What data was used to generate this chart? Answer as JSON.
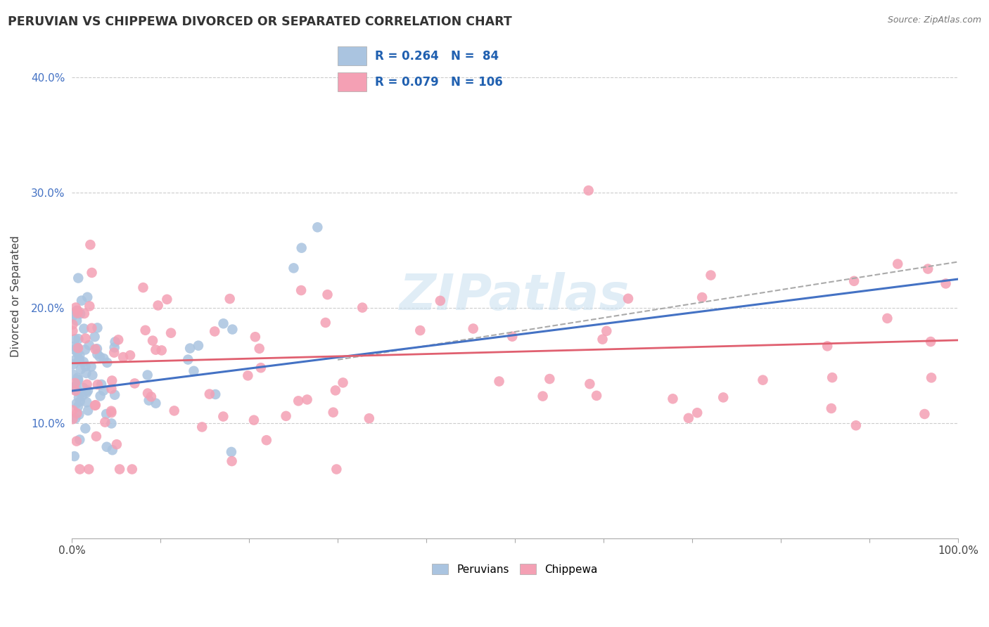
{
  "title": "PERUVIAN VS CHIPPEWA DIVORCED OR SEPARATED CORRELATION CHART",
  "source": "Source: ZipAtlas.com",
  "ylabel": "Divorced or Separated",
  "yticks": [
    0.1,
    0.2,
    0.3,
    0.4
  ],
  "ytick_labels": [
    "10.0%",
    "20.0%",
    "30.0%",
    "40.0%"
  ],
  "legend_R": [
    0.264,
    0.079
  ],
  "legend_N": [
    84,
    106
  ],
  "peruvian_color": "#aac4e0",
  "chippewa_color": "#f4a0b4",
  "peruvian_line_color": "#4472c4",
  "chippewa_line_color": "#e06070",
  "dashed_line_color": "#aaaaaa",
  "background_color": "#ffffff",
  "peru_line_x0": 0.0,
  "peru_line_y0": 0.128,
  "peru_line_x1": 1.0,
  "peru_line_y1": 0.225,
  "chip_line_x0": 0.0,
  "chip_line_y0": 0.152,
  "chip_line_x1": 1.0,
  "chip_line_y1": 0.172,
  "dash_line_x0": 0.3,
  "dash_line_y0": 0.155,
  "dash_line_x1": 1.0,
  "dash_line_y1": 0.24,
  "xlim": [
    0.0,
    1.0
  ],
  "ylim": [
    0.0,
    0.42
  ]
}
